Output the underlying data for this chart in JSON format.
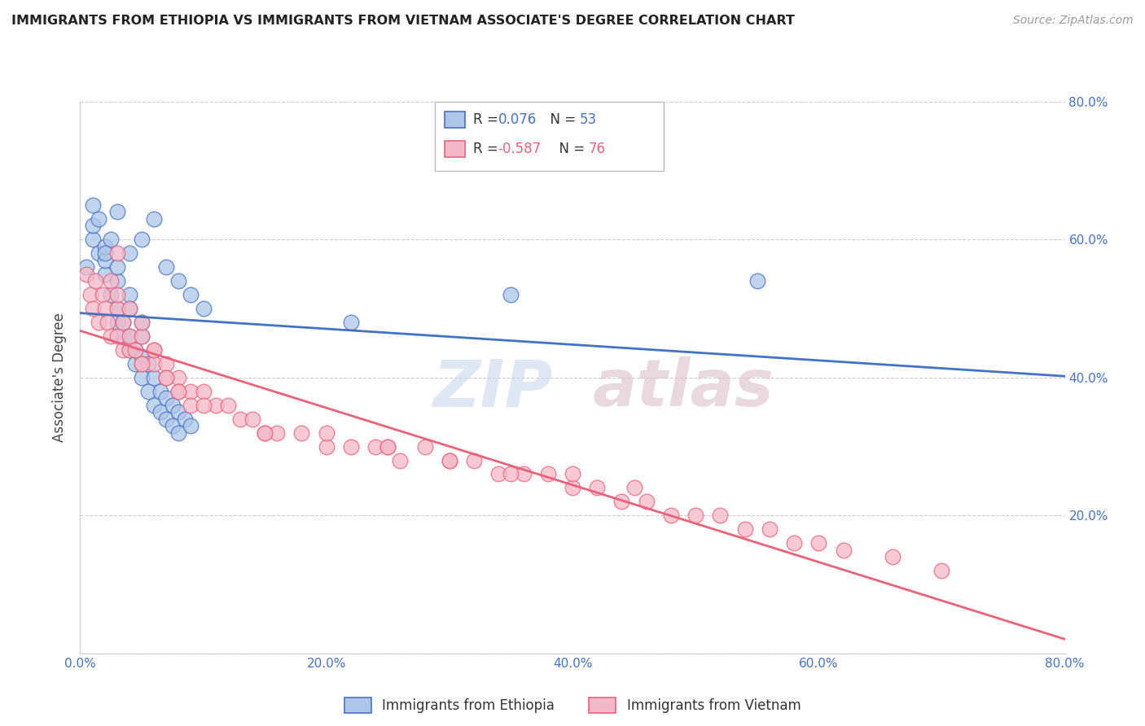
{
  "title": "IMMIGRANTS FROM ETHIOPIA VS IMMIGRANTS FROM VIETNAM ASSOCIATE'S DEGREE CORRELATION CHART",
  "source": "Source: ZipAtlas.com",
  "ylabel": "Associate's Degree",
  "legend_label1": "Immigrants from Ethiopia",
  "legend_label2": "Immigrants from Vietnam",
  "watermark_zip": "ZIP",
  "watermark_atlas": "atlas",
  "xlim": [
    0.0,
    0.8
  ],
  "ylim": [
    0.0,
    0.8
  ],
  "y_ticks": [
    0.0,
    0.2,
    0.4,
    0.6,
    0.8
  ],
  "y_tick_labels": [
    "",
    "20.0%",
    "40.0%",
    "60.0%",
    "80.0%"
  ],
  "x_ticks": [
    0.0,
    0.2,
    0.4,
    0.6,
    0.8
  ],
  "x_tick_labels": [
    "0.0%",
    "20.0%",
    "40.0%",
    "60.0%",
    "80.0%"
  ],
  "color_ethiopia": "#adc6e8",
  "color_vietnam": "#f5b8c8",
  "line_color_ethiopia": "#4472c4",
  "line_color_vietnam": "#e8627a",
  "ethiopia_x": [
    0.005,
    0.01,
    0.01,
    0.015,
    0.015,
    0.02,
    0.02,
    0.02,
    0.025,
    0.025,
    0.03,
    0.03,
    0.03,
    0.03,
    0.035,
    0.035,
    0.04,
    0.04,
    0.04,
    0.04,
    0.045,
    0.045,
    0.05,
    0.05,
    0.05,
    0.05,
    0.055,
    0.055,
    0.06,
    0.06,
    0.065,
    0.065,
    0.07,
    0.07,
    0.075,
    0.075,
    0.08,
    0.08,
    0.085,
    0.09,
    0.01,
    0.02,
    0.03,
    0.04,
    0.05,
    0.06,
    0.07,
    0.08,
    0.09,
    0.1,
    0.22,
    0.55,
    0.35
  ],
  "ethiopia_y": [
    0.56,
    0.6,
    0.62,
    0.58,
    0.63,
    0.55,
    0.57,
    0.59,
    0.52,
    0.6,
    0.48,
    0.5,
    0.54,
    0.56,
    0.46,
    0.48,
    0.44,
    0.46,
    0.5,
    0.52,
    0.42,
    0.44,
    0.4,
    0.43,
    0.46,
    0.48,
    0.38,
    0.42,
    0.36,
    0.4,
    0.35,
    0.38,
    0.34,
    0.37,
    0.33,
    0.36,
    0.32,
    0.35,
    0.34,
    0.33,
    0.65,
    0.58,
    0.64,
    0.58,
    0.6,
    0.63,
    0.56,
    0.54,
    0.52,
    0.5,
    0.48,
    0.54,
    0.52
  ],
  "vietnam_x": [
    0.005,
    0.008,
    0.01,
    0.012,
    0.015,
    0.018,
    0.02,
    0.022,
    0.025,
    0.025,
    0.03,
    0.03,
    0.03,
    0.03,
    0.035,
    0.035,
    0.04,
    0.04,
    0.04,
    0.045,
    0.05,
    0.05,
    0.05,
    0.06,
    0.06,
    0.07,
    0.07,
    0.08,
    0.08,
    0.09,
    0.1,
    0.11,
    0.12,
    0.13,
    0.14,
    0.15,
    0.16,
    0.18,
    0.2,
    0.22,
    0.24,
    0.26,
    0.28,
    0.3,
    0.32,
    0.34,
    0.36,
    0.38,
    0.4,
    0.42,
    0.44,
    0.46,
    0.48,
    0.5,
    0.52,
    0.54,
    0.56,
    0.58,
    0.6,
    0.62,
    0.25,
    0.3,
    0.35,
    0.4,
    0.45,
    0.66,
    0.7,
    0.05,
    0.06,
    0.07,
    0.08,
    0.09,
    0.1,
    0.15,
    0.2,
    0.25
  ],
  "vietnam_y": [
    0.55,
    0.52,
    0.5,
    0.54,
    0.48,
    0.52,
    0.5,
    0.48,
    0.46,
    0.54,
    0.5,
    0.52,
    0.46,
    0.58,
    0.48,
    0.44,
    0.5,
    0.44,
    0.46,
    0.44,
    0.46,
    0.42,
    0.48,
    0.44,
    0.42,
    0.42,
    0.4,
    0.4,
    0.38,
    0.38,
    0.38,
    0.36,
    0.36,
    0.34,
    0.34,
    0.32,
    0.32,
    0.32,
    0.3,
    0.3,
    0.3,
    0.28,
    0.3,
    0.28,
    0.28,
    0.26,
    0.26,
    0.26,
    0.24,
    0.24,
    0.22,
    0.22,
    0.2,
    0.2,
    0.2,
    0.18,
    0.18,
    0.16,
    0.16,
    0.15,
    0.3,
    0.28,
    0.26,
    0.26,
    0.24,
    0.14,
    0.12,
    0.42,
    0.44,
    0.4,
    0.38,
    0.36,
    0.36,
    0.32,
    0.32,
    0.3
  ]
}
